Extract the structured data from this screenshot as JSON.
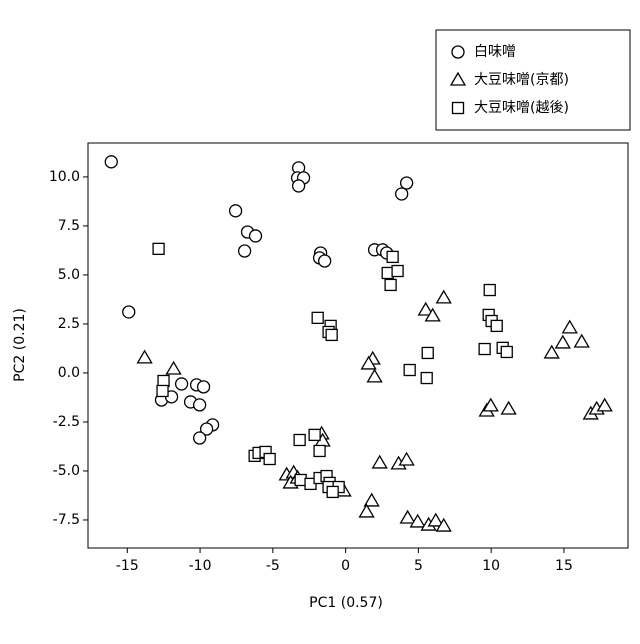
{
  "chart_data": {
    "type": "scatter",
    "xlabel": "PC1 (0.57)",
    "ylabel": "PC2 (0.21)",
    "xlim": [
      -17.7,
      19.4
    ],
    "ylim": [
      -8.93,
      11.73
    ],
    "xticks": [
      -15,
      -10,
      -5,
      0,
      5,
      10,
      15
    ],
    "yticks": [
      -7.5,
      {
        "value": -5,
        "label": "-5.0"
      },
      -2.5,
      {
        "value": 0,
        "label": "0.0"
      },
      2.5,
      {
        "value": 5,
        "label": "5.0"
      },
      7.5,
      {
        "value": 10,
        "label": "10.0"
      }
    ],
    "legend": "upper right",
    "series": [
      {
        "name": "白味噌",
        "marker": "circle",
        "color": "#ffffff",
        "x": [
          -16.1,
          -14.9,
          -3.23,
          -3.3,
          -2.89,
          -3.23,
          4.19,
          3.85,
          -7.56,
          -6.74,
          -6.19,
          -6.94,
          -1.72,
          -1.79,
          -1.44,
          1.99,
          2.54,
          2.82,
          -12.65,
          -11.96,
          -11.27,
          -10.24,
          -9.76,
          -10.65,
          -10.03,
          -9.14,
          -9.55,
          -10.03
        ],
        "values": [
          10.77,
          3.11,
          10.46,
          9.95,
          9.95,
          9.54,
          9.69,
          9.13,
          8.27,
          7.19,
          6.99,
          6.22,
          6.12,
          5.87,
          5.71,
          6.28,
          6.28,
          6.12,
          -1.38,
          -1.22,
          -0.56,
          -0.61,
          -0.71,
          -1.48,
          -1.63,
          -2.65,
          -2.86,
          -3.32
        ]
      },
      {
        "name": "大豆味噌(京都)",
        "marker": "triangle",
        "color": "#ffffff",
        "x": [
          -13.81,
          -11.82,
          1.86,
          1.58,
          1.99,
          5.5,
          5.98,
          6.74,
          15.4,
          14.92,
          14.16,
          16.22,
          9.69,
          9.97,
          11.2,
          16.84,
          17.25,
          17.8,
          -1.65,
          -1.58,
          2.34,
          3.64,
          4.19,
          -4.05,
          -3.57,
          -3.78,
          -3.3,
          -0.14,
          1.79,
          1.44,
          4.26,
          4.95,
          5.7,
          6.19,
          6.74
        ],
        "values": [
          0.77,
          0.2,
          0.71,
          0.46,
          -0.2,
          3.21,
          2.91,
          3.83,
          2.3,
          1.53,
          1.02,
          1.58,
          -1.94,
          -1.68,
          -1.84,
          -2.09,
          -1.84,
          -1.68,
          -3.11,
          -3.47,
          -4.59,
          -4.64,
          -4.44,
          -5.2,
          -5.1,
          -5.61,
          -5.36,
          -6.02,
          -6.53,
          -7.09,
          -7.4,
          -7.6,
          -7.76,
          -7.55,
          -7.81
        ]
      },
      {
        "name": "大豆味噌(越後)",
        "marker": "square",
        "color": "#ffffff",
        "x": [
          -12.85,
          -12.51,
          -12.58,
          -1.92,
          -1.03,
          -1.17,
          -0.96,
          3.23,
          2.89,
          3.57,
          3.09,
          9.9,
          9.83,
          10.03,
          10.38,
          9.55,
          10.79,
          11.07,
          5.64,
          4.4,
          5.57,
          -3.16,
          -2.13,
          -1.79,
          -6.25,
          -5.98,
          -5.5,
          -5.22,
          -3.09,
          -2.41,
          -1.79,
          -1.31,
          -1.1,
          -1.17,
          -0.48,
          -0.89
        ],
        "values": [
          6.33,
          -0.41,
          -0.92,
          2.81,
          2.4,
          2.09,
          1.94,
          5.92,
          5.1,
          5.2,
          4.49,
          4.23,
          2.96,
          2.65,
          2.4,
          1.22,
          1.28,
          1.07,
          1.02,
          0.15,
          -0.26,
          -3.42,
          -3.16,
          -3.98,
          -4.23,
          -4.08,
          -4.03,
          -4.39,
          -5.46,
          -5.66,
          -5.36,
          -5.26,
          -5.61,
          -5.82,
          -5.82,
          -6.07
        ]
      }
    ]
  }
}
